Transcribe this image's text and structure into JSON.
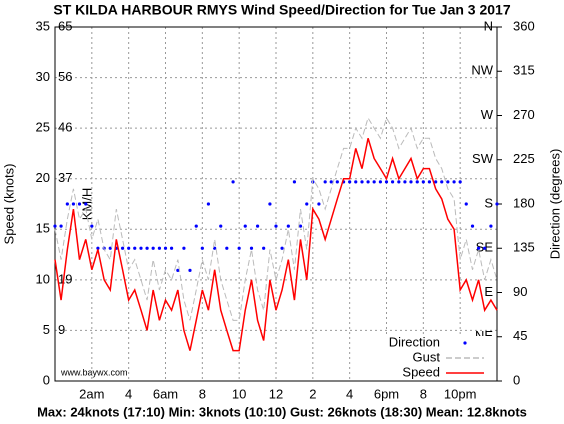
{
  "chart_data": {
    "type": "line",
    "title": "ST KILDA HARBOUR RMYS Wind Speed/Direction for Tue Jan 3 2017",
    "footer": "Max: 24knots (17:10) Min: 3knots (10:10) Gust: 26knots (18:30) Mean: 12.8knots",
    "watermark": "www.baywx.com",
    "ylabel": "Speed (knots)",
    "y2label": "Direction (degrees)",
    "kmh_label": "KM/H",
    "x": [
      0,
      0.33,
      0.67,
      1,
      1.33,
      1.67,
      2,
      2.33,
      2.67,
      3,
      3.33,
      3.67,
      4,
      4.33,
      4.67,
      5,
      5.33,
      5.67,
      6,
      6.33,
      6.67,
      7,
      7.33,
      7.67,
      8,
      8.33,
      8.67,
      9,
      9.33,
      9.67,
      10,
      10.33,
      10.67,
      11,
      11.33,
      11.67,
      12,
      12.33,
      12.67,
      13,
      13.33,
      13.67,
      14,
      14.33,
      14.67,
      15,
      15.33,
      15.67,
      16,
      16.33,
      16.67,
      17,
      17.33,
      17.67,
      18,
      18.33,
      18.67,
      19,
      19.33,
      19.67,
      20,
      20.33,
      20.67,
      21,
      21.33,
      21.67,
      22,
      22.33,
      22.67,
      23,
      23.33,
      23.67,
      24
    ],
    "series": [
      {
        "name": "Direction",
        "color": "#0000ff",
        "axis": "y2",
        "style": "dots",
        "values": [
          157.5,
          157.5,
          180,
          180,
          180,
          180,
          157.5,
          135,
          135,
          135,
          135,
          135,
          135,
          135,
          135,
          135,
          135,
          135,
          135,
          135,
          112.5,
          135,
          112.5,
          157.5,
          135,
          180,
          135,
          157.5,
          135,
          202.5,
          135,
          157.5,
          135,
          157.5,
          135,
          180,
          157.5,
          135,
          157.5,
          202.5,
          157.5,
          180,
          202.5,
          180,
          202.5,
          202.5,
          202.5,
          202.5,
          202.5,
          202.5,
          202.5,
          202.5,
          202.5,
          202.5,
          202.5,
          202.5,
          202.5,
          202.5,
          202.5,
          202.5,
          202.5,
          202.5,
          202.5,
          202.5,
          202.5,
          202.5,
          202.5,
          180,
          157.5,
          135,
          135,
          157.5,
          180
        ]
      },
      {
        "name": "Gust",
        "color": "#bbbbbb",
        "style": "dashed",
        "values": [
          15,
          12,
          16,
          19,
          16,
          17,
          14,
          16,
          13,
          12,
          17,
          14,
          11,
          12,
          10,
          8,
          12,
          9,
          11,
          10,
          12,
          8,
          6,
          9,
          12,
          10,
          14,
          10,
          8,
          6,
          6,
          10,
          13,
          9,
          7,
          13,
          10,
          12,
          15,
          11,
          17,
          13,
          20,
          19,
          17,
          19,
          21,
          23,
          23,
          25,
          24,
          26,
          25,
          24,
          26,
          25,
          23,
          24,
          25,
          23,
          24,
          24,
          22,
          21,
          19,
          18,
          12,
          14,
          11,
          13,
          10,
          12,
          10
        ]
      },
      {
        "name": "Speed",
        "color": "#ff0000",
        "style": "solid",
        "values": [
          12,
          8,
          13,
          17,
          12,
          14,
          11,
          13,
          10,
          9,
          14,
          11,
          8,
          9,
          7,
          5,
          9,
          6,
          8,
          7,
          9,
          5,
          3,
          6,
          9,
          7,
          11,
          7,
          5,
          3,
          3,
          7,
          10,
          6,
          4,
          10,
          7,
          9,
          12,
          8,
          14,
          10,
          17,
          16,
          14,
          16,
          18,
          20,
          20,
          23,
          21,
          24,
          22,
          21,
          20,
          22,
          20,
          21,
          22,
          20,
          21,
          21,
          19,
          18,
          16,
          15,
          9,
          10,
          8,
          10,
          7,
          8,
          7
        ]
      }
    ],
    "xlim": [
      0,
      24
    ],
    "xticks": [
      {
        "value": 2,
        "label": "2am"
      },
      4,
      {
        "value": 6,
        "label": "6am"
      },
      8,
      10,
      12,
      {
        "value": 14,
        "label": "2"
      },
      {
        "value": 16,
        "label": "4"
      },
      {
        "value": 18,
        "label": "6pm"
      },
      {
        "value": 20,
        "label": "8"
      },
      {
        "value": 22,
        "label": "10pm"
      }
    ],
    "ylim": [
      0,
      35
    ],
    "yticks": [
      0,
      5,
      10,
      15,
      20,
      25,
      30,
      35
    ],
    "y2lim": [
      0,
      360
    ],
    "y2ticks": [
      0,
      45,
      90,
      135,
      180,
      225,
      270,
      315,
      360
    ],
    "kmh_ticks": [
      {
        "value": 5,
        "label": "9"
      },
      {
        "value": 10,
        "label": "19"
      },
      {
        "value": 20,
        "label": "37"
      },
      {
        "value": 25,
        "label": "46"
      },
      {
        "value": 30,
        "label": "56"
      },
      {
        "value": 35,
        "label": "65"
      }
    ],
    "compass_ticks": [
      {
        "value": 45,
        "label": "NE"
      },
      {
        "value": 90,
        "label": "E"
      },
      {
        "value": 135,
        "label": "SE"
      },
      {
        "value": 180,
        "label": "S"
      },
      {
        "value": 225,
        "label": "SW"
      },
      {
        "value": 270,
        "label": "W"
      },
      {
        "value": 315,
        "label": "NW"
      },
      {
        "value": 360,
        "label": "N"
      }
    ],
    "grid": true
  }
}
